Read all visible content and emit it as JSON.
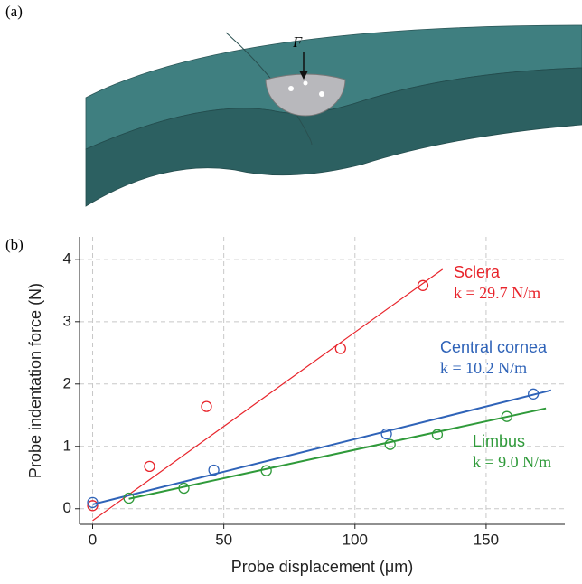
{
  "panel_a": {
    "label": "(a)",
    "force_label": "F"
  },
  "chart_data": {
    "type": "scatter",
    "panel_label": "(b)",
    "xlabel": "Probe displacement (μm)",
    "ylabel": "Probe indentation force (N)",
    "xlim": [
      -5,
      180
    ],
    "ylim": [
      -0.25,
      4.36
    ],
    "xticks": [
      0,
      50,
      100,
      150
    ],
    "yticks": [
      0,
      1,
      2,
      3,
      4
    ],
    "grid": true,
    "series": [
      {
        "name": "Sclera",
        "annotation": "k = 29.7 N/m",
        "color": "#e8242b",
        "x": [
          0,
          21.7,
          43.4,
          94.5,
          125.9
        ],
        "values": [
          0.05,
          0.68,
          1.64,
          2.57,
          3.58
        ],
        "fit": {
          "x": [
            0,
            133.4
          ],
          "values": [
            -0.19,
            3.84
          ]
        }
      },
      {
        "name": "Central cornea",
        "annotation": "k = 10.2 N/m",
        "color": "#2f63b8",
        "x": [
          0,
          46.2,
          112,
          168
        ],
        "values": [
          0.1,
          0.62,
          1.2,
          1.84
        ],
        "fit": {
          "x": [
            0,
            174.8
          ],
          "values": [
            0.07,
            1.9
          ]
        }
      },
      {
        "name": "Limbus",
        "annotation": "k = 9.0 N/m",
        "color": "#2f9a3a",
        "x": [
          13.8,
          34.8,
          66.2,
          113.4,
          131.4,
          157.9
        ],
        "values": [
          0.17,
          0.33,
          0.61,
          1.03,
          1.19,
          1.48
        ],
        "fit": {
          "x": [
            13.8,
            172.8
          ],
          "values": [
            0.16,
            1.61
          ]
        }
      }
    ]
  }
}
